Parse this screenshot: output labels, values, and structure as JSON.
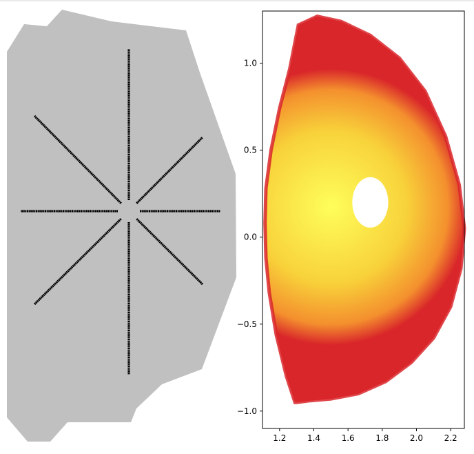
{
  "panels": {
    "left": {
      "type": "geometry",
      "ray_count": 8,
      "colors": {
        "vessel": "#c0c0c0",
        "rays": "#000000"
      }
    },
    "right": {
      "colors": {
        "edge": "#d9262a",
        "mid": "#f4902e",
        "core": "#fefe5a",
        "hole": "#ffffff"
      }
    }
  },
  "chart_data": {
    "type": "heatmap",
    "title": "",
    "xlabel": "",
    "ylabel": "",
    "xlim": [
      1.1,
      2.28
    ],
    "ylim": [
      -1.1,
      1.3
    ],
    "xticks": [
      1.2,
      1.4,
      1.6,
      1.8,
      2.0,
      2.2
    ],
    "xtick_labels": [
      "1.2",
      "1.4",
      "1.6",
      "1.8",
      "2.0",
      "2.2"
    ],
    "yticks": [
      -1.0,
      -0.5,
      0.0,
      0.5,
      1.0
    ],
    "ytick_labels": [
      "−1.0",
      "−0.5",
      "0.0",
      "0.5",
      "1.0"
    ],
    "colormap": [
      "#d9262a",
      "#f4902e",
      "#fefe5a"
    ],
    "boundary": {
      "x": [
        1.29,
        1.24,
        1.18,
        1.14,
        1.12,
        1.115,
        1.12,
        1.15,
        1.2,
        1.26,
        1.31,
        1.42,
        1.56,
        1.73,
        1.9,
        2.05,
        2.17,
        2.25,
        2.28,
        2.26,
        2.2,
        2.1,
        1.97,
        1.82,
        1.66,
        1.5,
        1.38,
        1.3,
        1.29
      ],
      "y": [
        -0.95,
        -0.8,
        -0.56,
        -0.32,
        -0.12,
        0.08,
        0.28,
        0.5,
        0.74,
        0.97,
        1.22,
        1.27,
        1.24,
        1.16,
        1.03,
        0.84,
        0.58,
        0.3,
        0.05,
        -0.18,
        -0.4,
        -0.58,
        -0.72,
        -0.83,
        -0.9,
        -0.93,
        -0.94,
        -0.95,
        -0.95
      ]
    },
    "hole": {
      "center": [
        1.73,
        0.2
      ],
      "radius_x": 0.105,
      "radius_y": 0.145
    }
  }
}
